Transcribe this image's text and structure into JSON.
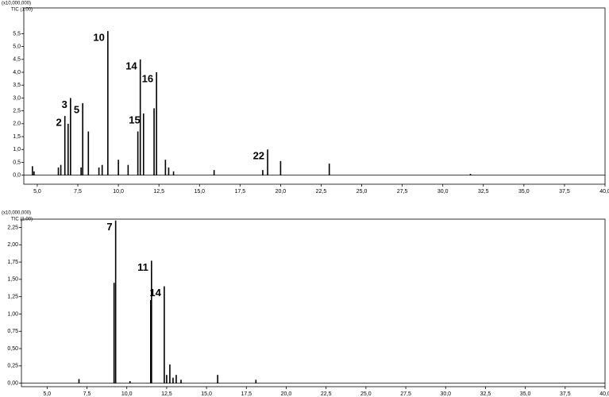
{
  "chart_data": [
    {
      "type": "stem",
      "y_unit": "(x10,000,000)",
      "trace_label": "TIC (1.00)",
      "color": "#000000",
      "x": [
        4.7,
        4.8,
        6.3,
        6.45,
        6.7,
        6.9,
        7.05,
        7.7,
        7.8,
        8.15,
        8.8,
        9.0,
        9.35,
        10.0,
        10.6,
        11.2,
        11.35,
        11.55,
        12.2,
        12.35,
        12.9,
        13.1,
        13.4,
        15.9,
        18.9,
        19.2,
        20.0,
        23.0,
        31.7
      ],
      "values": [
        0.35,
        0.15,
        0.3,
        0.4,
        2.3,
        2.0,
        3.0,
        0.3,
        2.8,
        1.7,
        0.3,
        0.4,
        5.6,
        0.6,
        0.4,
        1.7,
        4.5,
        2.4,
        2.6,
        4.0,
        0.6,
        0.3,
        0.15,
        0.2,
        0.2,
        1.0,
        0.55,
        0.45,
        0.05
      ],
      "peak_labels": [
        null,
        null,
        null,
        null,
        "2",
        null,
        "3",
        null,
        "5",
        null,
        null,
        null,
        "10",
        null,
        null,
        null,
        "14",
        "15",
        null,
        "16",
        null,
        null,
        null,
        null,
        null,
        "22",
        null,
        null,
        null
      ],
      "xlim": [
        4.17,
        40.0
      ],
      "ylim": [
        -0.35,
        6.5
      ],
      "xticks": [
        {
          "value": 5,
          "label": "5,0"
        },
        {
          "value": 7.5,
          "label": "7,5"
        },
        {
          "value": 10,
          "label": "10,0"
        },
        {
          "value": 12.5,
          "label": "12,5"
        },
        {
          "value": 15,
          "label": "15,0"
        },
        {
          "value": 17.5,
          "label": "17,5"
        },
        {
          "value": 20,
          "label": "20,0"
        },
        {
          "value": 22.5,
          "label": "22,5"
        },
        {
          "value": 25,
          "label": "25,0"
        },
        {
          "value": 27.5,
          "label": "27,5"
        },
        {
          "value": 30,
          "label": "30,0"
        },
        {
          "value": 32.5,
          "label": "32,5"
        },
        {
          "value": 35,
          "label": "35,0"
        },
        {
          "value": 37.5,
          "label": "37,5"
        },
        {
          "value": 40,
          "label": "40,0"
        }
      ],
      "yticks": [
        {
          "value": 0,
          "label": "0,0"
        },
        {
          "value": 0.5,
          "label": "0,5"
        },
        {
          "value": 1,
          "label": "1,0"
        },
        {
          "value": 1.5,
          "label": "1,5"
        },
        {
          "value": 2,
          "label": "2,0"
        },
        {
          "value": 2.5,
          "label": "2,5"
        },
        {
          "value": 3,
          "label": "3,0"
        },
        {
          "value": 3.5,
          "label": "3,5"
        },
        {
          "value": 4,
          "label": "4,0"
        },
        {
          "value": 4.5,
          "label": "4,5"
        },
        {
          "value": 5,
          "label": "5,0"
        },
        {
          "value": 5.5,
          "label": "5,5"
        }
      ]
    },
    {
      "type": "stem",
      "y_unit": "(x10,000,000)",
      "trace_label": "TIC (1.00)",
      "color": "#000000",
      "x": [
        7.0,
        9.2,
        9.3,
        10.2,
        11.5,
        11.55,
        12.35,
        12.5,
        12.7,
        12.9,
        13.1,
        13.4,
        15.7,
        18.1
      ],
      "values": [
        0.06,
        1.45,
        2.35,
        0.03,
        1.2,
        1.77,
        1.4,
        0.12,
        0.27,
        0.08,
        0.12,
        0.05,
        0.12,
        0.05
      ],
      "peak_labels": [
        null,
        null,
        "7",
        null,
        null,
        "11",
        "14",
        null,
        null,
        null,
        null,
        null,
        null,
        null
      ],
      "xlim": [
        3.39,
        40.0
      ],
      "ylim": [
        -0.05,
        2.37
      ],
      "xticks": [
        {
          "value": 5,
          "label": "5,0"
        },
        {
          "value": 7.5,
          "label": "7,5"
        },
        {
          "value": 10,
          "label": "10,0"
        },
        {
          "value": 12.5,
          "label": "12,5"
        },
        {
          "value": 15,
          "label": "15,0"
        },
        {
          "value": 17.5,
          "label": "17,5"
        },
        {
          "value": 20,
          "label": "20,0"
        },
        {
          "value": 22.5,
          "label": "22,5"
        },
        {
          "value": 25,
          "label": "25,0"
        },
        {
          "value": 27.5,
          "label": "27,5"
        },
        {
          "value": 30,
          "label": "30,0"
        },
        {
          "value": 32.5,
          "label": "32,5"
        },
        {
          "value": 35,
          "label": "35,0"
        },
        {
          "value": 37.5,
          "label": "37,5"
        },
        {
          "value": 40,
          "label": "40,0"
        }
      ],
      "yticks": [
        {
          "value": 0,
          "label": "0,00"
        },
        {
          "value": 0.25,
          "label": "0,25"
        },
        {
          "value": 0.5,
          "label": "0,50"
        },
        {
          "value": 0.75,
          "label": "0,75"
        },
        {
          "value": 1,
          "label": "1,00"
        },
        {
          "value": 1.25,
          "label": "1,25"
        },
        {
          "value": 1.5,
          "label": "1,50"
        },
        {
          "value": 1.75,
          "label": "1,75"
        },
        {
          "value": 2,
          "label": "2,00"
        },
        {
          "value": 2.25,
          "label": "2,25"
        }
      ]
    }
  ]
}
